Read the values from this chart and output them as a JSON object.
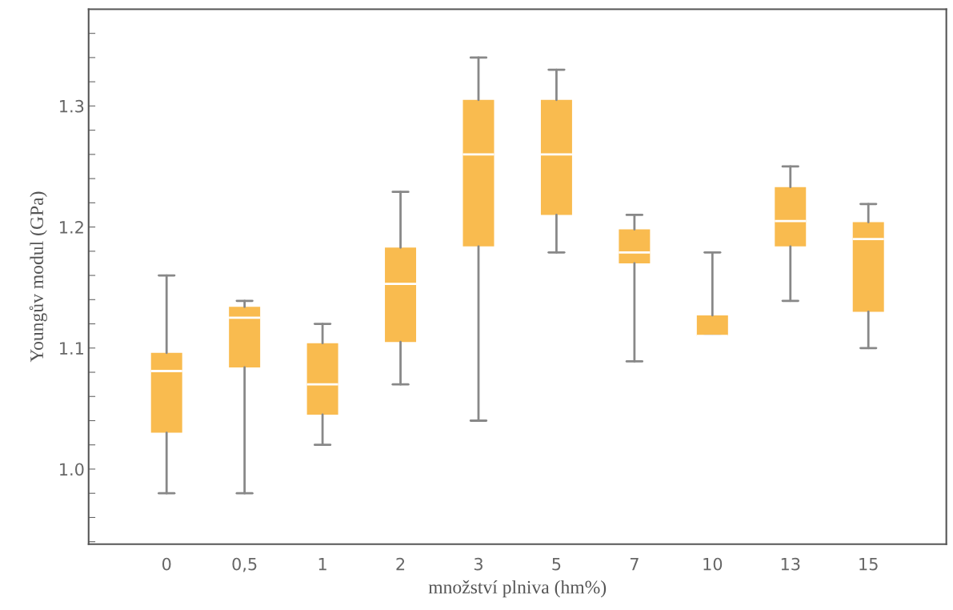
{
  "chart_data": {
    "type": "box",
    "xlabel": "množství plniva (hm%)",
    "ylabel": "Youngův modul (GPa)",
    "categories": [
      "0",
      "0,5",
      "1",
      "2",
      "3",
      "5",
      "7",
      "10",
      "13",
      "15"
    ],
    "color": "#f9bb4f",
    "boxes": [
      {
        "low": 0.98,
        "q1": 1.03,
        "median": 1.081,
        "q3": 1.096,
        "high": 1.16
      },
      {
        "low": 0.98,
        "q1": 1.084,
        "median": 1.125,
        "q3": 1.134,
        "high": 1.139
      },
      {
        "low": 1.02,
        "q1": 1.045,
        "median": 1.07,
        "q3": 1.104,
        "high": 1.12
      },
      {
        "low": 1.07,
        "q1": 1.105,
        "median": 1.153,
        "q3": 1.183,
        "high": 1.229
      },
      {
        "low": 1.04,
        "q1": 1.184,
        "median": 1.26,
        "q3": 1.305,
        "high": 1.34
      },
      {
        "low": 1.179,
        "q1": 1.21,
        "median": 1.26,
        "q3": 1.305,
        "high": 1.33
      },
      {
        "low": 1.089,
        "q1": 1.17,
        "median": 1.179,
        "q3": 1.198,
        "high": 1.21
      },
      {
        "low": 1.11,
        "q1": 1.11,
        "median": 1.11,
        "q3": 1.127,
        "high": 1.179
      },
      {
        "low": 1.139,
        "q1": 1.184,
        "median": 1.205,
        "q3": 1.233,
        "high": 1.25
      },
      {
        "low": 1.1,
        "q1": 1.13,
        "median": 1.19,
        "q3": 1.204,
        "high": 1.219
      }
    ],
    "ylim": [
      0.938,
      1.38
    ],
    "yticks": [
      {
        "value": 0.94,
        "label": null
      },
      {
        "value": 0.96,
        "label": null
      },
      {
        "value": 0.98,
        "label": null
      },
      {
        "value": 1.0,
        "label": "1.0"
      },
      {
        "value": 1.02,
        "label": null
      },
      {
        "value": 1.04,
        "label": null
      },
      {
        "value": 1.06,
        "label": null
      },
      {
        "value": 1.08,
        "label": null
      },
      {
        "value": 1.1,
        "label": "1.1"
      },
      {
        "value": 1.12,
        "label": null
      },
      {
        "value": 1.14,
        "label": null
      },
      {
        "value": 1.16,
        "label": null
      },
      {
        "value": 1.18,
        "label": null
      },
      {
        "value": 1.2,
        "label": "1.2"
      },
      {
        "value": 1.22,
        "label": null
      },
      {
        "value": 1.24,
        "label": null
      },
      {
        "value": 1.26,
        "label": null
      },
      {
        "value": 1.28,
        "label": null
      },
      {
        "value": 1.3,
        "label": "1.3"
      },
      {
        "value": 1.32,
        "label": null
      },
      {
        "value": 1.34,
        "label": null
      },
      {
        "value": 1.36,
        "label": null
      }
    ],
    "grid": false
  }
}
